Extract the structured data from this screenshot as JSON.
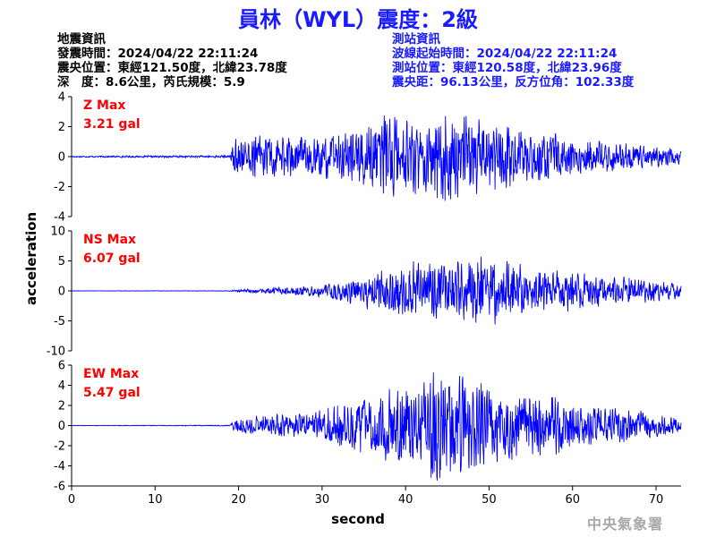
{
  "title": "員林（WYL）震度：2級",
  "quake_info": {
    "heading": "地震資訊",
    "time": "發震時間：2024/04/22 22:11:24",
    "epicenter": "震央位置：東經121.50度，北緯23.78度",
    "depth_magnitude": "深　度：8.6公里，芮氏規模：5.9"
  },
  "station_info": {
    "heading": "測站資訊",
    "wave_start": "波線起始時間：2024/04/22 22:11:24",
    "location": "測站位置：東經120.58度，北緯23.96度",
    "distance_azimuth": "震央距：96.13公里，反方位角：102.33度"
  },
  "agency": "中央氣象署",
  "colors": {
    "trace": "#0000ff",
    "max_label": "#ff0000",
    "axis": "#000000"
  },
  "chart_data": {
    "type": "line",
    "xlabel": "second",
    "ylabel": "acceleration",
    "xlim": [
      0,
      73
    ],
    "xticks": [
      0,
      10,
      20,
      30,
      40,
      50,
      60,
      70
    ],
    "grid": false,
    "signal_onset_s": 19.2,
    "panels": [
      {
        "component": "Z",
        "max_label": "Z Max",
        "max_value": "3.21 gal",
        "ylim": [
          -4,
          4
        ],
        "yticks": [
          -4,
          -2,
          0,
          2,
          4
        ],
        "envelope": [
          [
            0,
            0.05
          ],
          [
            19,
            0.08
          ],
          [
            19.3,
            1.2
          ],
          [
            22,
            1.4
          ],
          [
            28,
            1.3
          ],
          [
            33,
            1.6
          ],
          [
            38,
            2.8
          ],
          [
            42,
            2.4
          ],
          [
            46,
            3.21
          ],
          [
            48,
            2.6
          ],
          [
            52,
            2.0
          ],
          [
            56,
            1.7
          ],
          [
            60,
            1.2
          ],
          [
            64,
            1.0
          ],
          [
            68,
            0.8
          ],
          [
            73,
            0.5
          ]
        ]
      },
      {
        "component": "NS",
        "max_label": "NS Max",
        "max_value": "6.07 gal",
        "ylim": [
          -10,
          10
        ],
        "yticks": [
          -10,
          -5,
          0,
          5,
          10
        ],
        "envelope": [
          [
            0,
            0.02
          ],
          [
            19,
            0.05
          ],
          [
            20,
            0.3
          ],
          [
            25,
            0.6
          ],
          [
            30,
            1.0
          ],
          [
            35,
            2.8
          ],
          [
            38,
            3.8
          ],
          [
            40,
            4.5
          ],
          [
            44,
            5.0
          ],
          [
            46,
            4.8
          ],
          [
            50,
            6.07
          ],
          [
            52,
            5.0
          ],
          [
            56,
            3.8
          ],
          [
            60,
            3.0
          ],
          [
            64,
            2.5
          ],
          [
            68,
            2.0
          ],
          [
            73,
            1.2
          ]
        ]
      },
      {
        "component": "EW",
        "max_label": "EW Max",
        "max_value": "5.47 gal",
        "ylim": [
          -6,
          6
        ],
        "yticks": [
          -6,
          -4,
          -2,
          0,
          2,
          4,
          6
        ],
        "envelope": [
          [
            0,
            0.02
          ],
          [
            19,
            0.05
          ],
          [
            19.5,
            0.8
          ],
          [
            22,
            1.0
          ],
          [
            28,
            1.2
          ],
          [
            32,
            2.0
          ],
          [
            36,
            3.0
          ],
          [
            40,
            4.2
          ],
          [
            44,
            5.47
          ],
          [
            46,
            5.2
          ],
          [
            48,
            4.5
          ],
          [
            52,
            3.5
          ],
          [
            56,
            3.0
          ],
          [
            60,
            2.5
          ],
          [
            64,
            1.8
          ],
          [
            68,
            1.5
          ],
          [
            73,
            0.8
          ]
        ]
      }
    ]
  }
}
